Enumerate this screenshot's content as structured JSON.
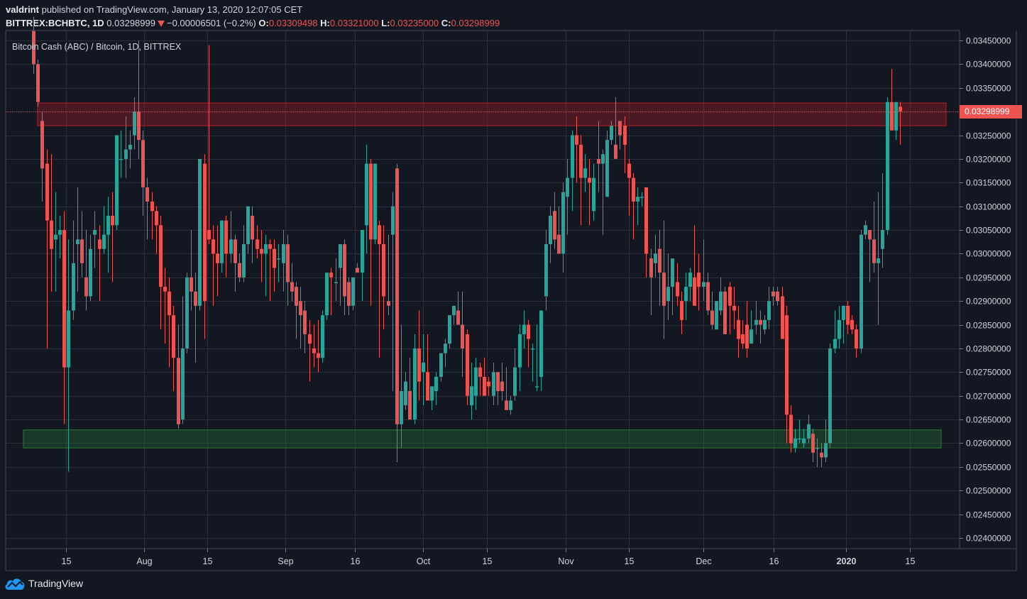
{
  "header": {
    "author": "valdrint",
    "published_text": "published on TradingView.com, January 13, 2020 12:07:05 CET",
    "symbol": "BITTREX:BCHBTC, 1D",
    "last_price": "0.03298999",
    "change": "−0.00006501 (−0.2%)",
    "ohlc": [
      {
        "key": "O:",
        "value": "0.03309498"
      },
      {
        "key": "H:",
        "value": "0.03321000"
      },
      {
        "key": "L:",
        "value": "0.03235000"
      },
      {
        "key": "C:",
        "value": "0.03298999"
      }
    ]
  },
  "legend": "Bitcoin Cash (ABC) / Bitcoin, 1D, BITTREX",
  "price_label": "0.03298999",
  "brand": "TradingView",
  "colors": {
    "background": "#131722",
    "grid": "#2a2e39",
    "up": "#26a69a",
    "down": "#ef5350",
    "resistance_zone": "#7f1d24",
    "support_zone": "#1b5e20",
    "axis_text": "#d1d4dc",
    "brand_blue": "#2196f3"
  },
  "chart_data": {
    "type": "candlestick",
    "title": "Bitcoin Cash (ABC) / Bitcoin, 1D, BITTREX",
    "xlabel": "",
    "ylabel": "",
    "ylim": [
      0.0238,
      0.0346
    ],
    "y_ticks": [
      "0.03450000",
      "0.03400000",
      "0.03350000",
      "0.03300000",
      "0.03250000",
      "0.03200000",
      "0.03150000",
      "0.03100000",
      "0.03050000",
      "0.03000000",
      "0.02950000",
      "0.02900000",
      "0.02850000",
      "0.02800000",
      "0.02750000",
      "0.02700000",
      "0.02650000",
      "0.02600000",
      "0.02550000",
      "0.02500000",
      "0.02450000",
      "0.02400000"
    ],
    "x_ticks": [
      {
        "label": "15",
        "x": 93
      },
      {
        "label": "Aug",
        "x": 203
      },
      {
        "label": "15",
        "x": 292
      },
      {
        "label": "Sep",
        "x": 402
      },
      {
        "label": "16",
        "x": 500
      },
      {
        "label": "Oct",
        "x": 596
      },
      {
        "label": "15",
        "x": 686
      },
      {
        "label": "Nov",
        "x": 797
      },
      {
        "label": "15",
        "x": 886
      },
      {
        "label": "Dec",
        "x": 991
      },
      {
        "label": "16",
        "x": 1090
      },
      {
        "label": "2020",
        "x": 1192
      },
      {
        "label": "15",
        "x": 1282
      }
    ],
    "grid": true,
    "zones": [
      {
        "name": "resistance",
        "from": 0.0327,
        "to": 0.03318,
        "x_start": 53,
        "x_end": 1333
      },
      {
        "name": "support",
        "from": 0.0259,
        "to": 0.02628,
        "x_start": 33,
        "x_end": 1326
      }
    ],
    "last_close_line": 0.03298999,
    "candles": [
      [
        0.0347,
        0.035,
        0.0338,
        0.034
      ],
      [
        0.034,
        0.0341,
        0.0331,
        0.0332
      ],
      [
        0.0328,
        0.033,
        0.0311,
        0.0318
      ],
      [
        0.0319,
        0.0322,
        0.028,
        0.0307
      ],
      [
        0.0307,
        0.0321,
        0.0292,
        0.0301
      ],
      [
        0.0303,
        0.0313,
        0.0292,
        0.0304
      ],
      [
        0.0304,
        0.0308,
        0.0299,
        0.0305
      ],
      [
        0.0305,
        0.0309,
        0.0264,
        0.0276
      ],
      [
        0.0276,
        0.0303,
        0.0254,
        0.0288
      ],
      [
        0.0288,
        0.0307,
        0.0286,
        0.0298
      ],
      [
        0.0302,
        0.0314,
        0.0292,
        0.0303
      ],
      [
        0.0303,
        0.0309,
        0.0295,
        0.0298
      ],
      [
        0.0295,
        0.0305,
        0.0288,
        0.0291
      ],
      [
        0.0291,
        0.0304,
        0.029,
        0.0301
      ],
      [
        0.0304,
        0.0309,
        0.0297,
        0.0305
      ],
      [
        0.0303,
        0.0306,
        0.029,
        0.0301
      ],
      [
        0.0301,
        0.031,
        0.03,
        0.0304
      ],
      [
        0.0304,
        0.0312,
        0.0296,
        0.0308
      ],
      [
        0.0308,
        0.0313,
        0.0294,
        0.0306
      ],
      [
        0.0306,
        0.0324,
        0.0305,
        0.0325
      ],
      [
        0.032,
        0.0326,
        0.0316,
        0.032
      ],
      [
        0.032,
        0.0329,
        0.0316,
        0.0322
      ],
      [
        0.0322,
        0.0326,
        0.0318,
        0.0323
      ],
      [
        0.0325,
        0.0333,
        0.0322,
        0.033
      ],
      [
        0.033,
        0.0345,
        0.032,
        0.0324
      ],
      [
        0.0324,
        0.0326,
        0.0308,
        0.0314
      ],
      [
        0.0314,
        0.0316,
        0.0303,
        0.0311
      ],
      [
        0.0311,
        0.0313,
        0.0303,
        0.0309
      ],
      [
        0.0309,
        0.031,
        0.03,
        0.0306
      ],
      [
        0.0306,
        0.0308,
        0.0284,
        0.0293
      ],
      [
        0.0293,
        0.0297,
        0.0281,
        0.0292
      ],
      [
        0.0292,
        0.0295,
        0.0276,
        0.0287
      ],
      [
        0.0287,
        0.0289,
        0.0271,
        0.0278
      ],
      [
        0.0278,
        0.0285,
        0.0263,
        0.0264
      ],
      [
        0.0265,
        0.0291,
        0.0264,
        0.028
      ],
      [
        0.028,
        0.0296,
        0.0279,
        0.0295
      ],
      [
        0.0295,
        0.0305,
        0.0288,
        0.0292
      ],
      [
        0.0292,
        0.0296,
        0.0277,
        0.0289
      ],
      [
        0.0289,
        0.0302,
        0.0288,
        0.032
      ],
      [
        0.0319,
        0.0321,
        0.0282,
        0.029
      ],
      [
        0.0305,
        0.0344,
        0.0302,
        0.0303
      ],
      [
        0.0303,
        0.0306,
        0.0289,
        0.03
      ],
      [
        0.03,
        0.0306,
        0.0291,
        0.0298
      ],
      [
        0.0298,
        0.0307,
        0.0296,
        0.0307
      ],
      [
        0.0307,
        0.0308,
        0.0295,
        0.03
      ],
      [
        0.03,
        0.0309,
        0.0298,
        0.0303
      ],
      [
        0.0303,
        0.0304,
        0.0292,
        0.0298
      ],
      [
        0.0298,
        0.03,
        0.0294,
        0.0295
      ],
      [
        0.0295,
        0.0306,
        0.0294,
        0.0302
      ],
      [
        0.0302,
        0.0309,
        0.03,
        0.031
      ],
      [
        0.0308,
        0.031,
        0.0298,
        0.0303
      ],
      [
        0.0303,
        0.0306,
        0.0299,
        0.0301
      ],
      [
        0.0301,
        0.0305,
        0.0294,
        0.03
      ],
      [
        0.03,
        0.0304,
        0.0291,
        0.0302
      ],
      [
        0.0302,
        0.0303,
        0.029,
        0.0301
      ],
      [
        0.0301,
        0.0303,
        0.0292,
        0.0297
      ],
      [
        0.0299,
        0.0302,
        0.0294,
        0.0299
      ],
      [
        0.0298,
        0.0305,
        0.0292,
        0.0302
      ],
      [
        0.0302,
        0.0304,
        0.0289,
        0.0294
      ],
      [
        0.0294,
        0.0298,
        0.029,
        0.0292
      ],
      [
        0.0293,
        0.0294,
        0.0282,
        0.0289
      ],
      [
        0.029,
        0.0293,
        0.028,
        0.0287
      ],
      [
        0.0288,
        0.029,
        0.0279,
        0.0283
      ],
      [
        0.0283,
        0.0286,
        0.0273,
        0.0281
      ],
      [
        0.028,
        0.0285,
        0.0276,
        0.0279
      ],
      [
        0.0279,
        0.0286,
        0.0275,
        0.0278
      ],
      [
        0.0278,
        0.0288,
        0.0277,
        0.0287
      ],
      [
        0.0287,
        0.0295,
        0.0286,
        0.0296
      ],
      [
        0.0296,
        0.0297,
        0.0287,
        0.0295
      ],
      [
        0.0294,
        0.0299,
        0.029,
        0.0294
      ],
      [
        0.0297,
        0.0302,
        0.0289,
        0.0302
      ],
      [
        0.0302,
        0.0303,
        0.0287,
        0.0291
      ],
      [
        0.0294,
        0.0295,
        0.0287,
        0.0289
      ],
      [
        0.0289,
        0.0295,
        0.0288,
        0.0295
      ],
      [
        0.0297,
        0.0298,
        0.0296,
        0.0296
      ],
      [
        0.0296,
        0.0303,
        0.029,
        0.0305
      ],
      [
        0.0306,
        0.0323,
        0.03,
        0.0319
      ],
      [
        0.0319,
        0.032,
        0.0289,
        0.0303
      ],
      [
        0.0303,
        0.0319,
        0.0302,
        0.0319
      ],
      [
        0.0306,
        0.0307,
        0.0278,
        0.0302
      ],
      [
        0.0302,
        0.0306,
        0.0284,
        0.0291
      ],
      [
        0.029,
        0.0304,
        0.0287,
        0.0289
      ],
      [
        0.0304,
        0.0313,
        0.0271,
        0.031
      ],
      [
        0.0318,
        0.0319,
        0.0256,
        0.0264
      ],
      [
        0.0264,
        0.0285,
        0.0259,
        0.0271
      ],
      [
        0.0268,
        0.0275,
        0.0267,
        0.0273
      ],
      [
        0.0271,
        0.0278,
        0.0269,
        0.0265
      ],
      [
        0.0265,
        0.0283,
        0.0264,
        0.028
      ],
      [
        0.028,
        0.0288,
        0.0269,
        0.0273
      ],
      [
        0.0275,
        0.0283,
        0.0268,
        0.0277
      ],
      [
        0.0275,
        0.0283,
        0.027,
        0.0269
      ],
      [
        0.0269,
        0.0272,
        0.0267,
        0.0272
      ],
      [
        0.0271,
        0.0275,
        0.0268,
        0.0274
      ],
      [
        0.0274,
        0.0278,
        0.0273,
        0.0279
      ],
      [
        0.0279,
        0.0282,
        0.0276,
        0.0281
      ],
      [
        0.0281,
        0.0287,
        0.028,
        0.0287
      ],
      [
        0.0287,
        0.0289,
        0.0285,
        0.0289
      ],
      [
        0.0288,
        0.0292,
        0.0285,
        0.0285
      ],
      [
        0.0285,
        0.0292,
        0.0274,
        0.028
      ],
      [
        0.0283,
        0.0284,
        0.0268,
        0.027
      ],
      [
        0.0268,
        0.0277,
        0.0265,
        0.0272
      ],
      [
        0.027,
        0.0278,
        0.0267,
        0.0276
      ],
      [
        0.0276,
        0.0277,
        0.027,
        0.0274
      ],
      [
        0.0274,
        0.0278,
        0.0272,
        0.027
      ],
      [
        0.0273,
        0.0274,
        0.027,
        0.0272
      ],
      [
        0.027,
        0.0277,
        0.0268,
        0.0275
      ],
      [
        0.0275,
        0.0275,
        0.0268,
        0.0271
      ],
      [
        0.0273,
        0.0277,
        0.0269,
        0.0271
      ],
      [
        0.0269,
        0.0276,
        0.0267,
        0.0267
      ],
      [
        0.0267,
        0.027,
        0.0266,
        0.0269
      ],
      [
        0.027,
        0.028,
        0.0269,
        0.0276
      ],
      [
        0.0276,
        0.0285,
        0.0271,
        0.0283
      ],
      [
        0.0283,
        0.0288,
        0.028,
        0.0285
      ],
      [
        0.0285,
        0.0286,
        0.0276,
        0.0282
      ],
      [
        0.028,
        0.0281,
        0.0273,
        0.028
      ],
      [
        0.0272,
        0.0285,
        0.0271,
        0.0272
      ],
      [
        0.0274,
        0.0286,
        0.0271,
        0.0288
      ],
      [
        0.0291,
        0.0305,
        0.0288,
        0.0302
      ],
      [
        0.0302,
        0.031,
        0.0298,
        0.0308
      ],
      [
        0.0309,
        0.0313,
        0.0301,
        0.0303
      ],
      [
        0.0304,
        0.031,
        0.0303,
        0.03
      ],
      [
        0.03,
        0.0315,
        0.0296,
        0.0313
      ],
      [
        0.0312,
        0.032,
        0.0304,
        0.0316
      ],
      [
        0.0316,
        0.0326,
        0.0309,
        0.0325
      ],
      [
        0.0325,
        0.0329,
        0.0315,
        0.0323
      ],
      [
        0.0323,
        0.0325,
        0.0306,
        0.0316
      ],
      [
        0.0316,
        0.0321,
        0.0313,
        0.0318
      ],
      [
        0.0316,
        0.032,
        0.0306,
        0.0315
      ],
      [
        0.0309,
        0.0319,
        0.0307,
        0.0316
      ],
      [
        0.032,
        0.0328,
        0.0313,
        0.0319
      ],
      [
        0.0319,
        0.0322,
        0.0304,
        0.0321
      ],
      [
        0.0312,
        0.0326,
        0.0312,
        0.0324
      ],
      [
        0.0324,
        0.0328,
        0.0323,
        0.0327
      ],
      [
        0.0323,
        0.0333,
        0.0321,
        0.032
      ],
      [
        0.0328,
        0.0328,
        0.0322,
        0.0325
      ],
      [
        0.0327,
        0.0329,
        0.0317,
        0.0323
      ],
      [
        0.0319,
        0.032,
        0.0308,
        0.0316
      ],
      [
        0.0316,
        0.0317,
        0.0303,
        0.0311
      ],
      [
        0.0311,
        0.0314,
        0.0306,
        0.0312
      ],
      [
        0.0312,
        0.0313,
        0.031,
        0.0312
      ],
      [
        0.0314,
        0.0314,
        0.0295,
        0.03
      ],
      [
        0.0299,
        0.0301,
        0.0287,
        0.0295
      ],
      [
        0.0298,
        0.0304,
        0.0295,
        0.03
      ],
      [
        0.0301,
        0.0305,
        0.0289,
        0.0296
      ],
      [
        0.0296,
        0.0307,
        0.0282,
        0.0289
      ],
      [
        0.029,
        0.03,
        0.0286,
        0.0293
      ],
      [
        0.0293,
        0.0296,
        0.0287,
        0.0299
      ],
      [
        0.0294,
        0.0298,
        0.0289,
        0.0291
      ],
      [
        0.029,
        0.0292,
        0.0283,
        0.0286
      ],
      [
        0.029,
        0.0296,
        0.0286,
        0.0293
      ],
      [
        0.0293,
        0.0297,
        0.029,
        0.0296
      ],
      [
        0.0295,
        0.0306,
        0.0292,
        0.0289
      ],
      [
        0.0296,
        0.03,
        0.0288,
        0.0293
      ],
      [
        0.0293,
        0.0303,
        0.029,
        0.0294
      ],
      [
        0.0294,
        0.0296,
        0.0287,
        0.0288
      ],
      [
        0.0288,
        0.0292,
        0.0284,
        0.0285
      ],
      [
        0.0284,
        0.029,
        0.0284,
        0.029
      ],
      [
        0.0288,
        0.0295,
        0.0287,
        0.0292
      ],
      [
        0.0292,
        0.0293,
        0.0285,
        0.0283
      ],
      [
        0.0293,
        0.0294,
        0.0283,
        0.0289
      ],
      [
        0.0289,
        0.0293,
        0.0284,
        0.0288
      ],
      [
        0.0286,
        0.0289,
        0.0278,
        0.0282
      ],
      [
        0.0283,
        0.0286,
        0.028,
        0.0281
      ],
      [
        0.0285,
        0.029,
        0.0278,
        0.028
      ],
      [
        0.0281,
        0.0288,
        0.0282,
        0.0284
      ],
      [
        0.0285,
        0.029,
        0.0283,
        0.0286
      ],
      [
        0.0286,
        0.0288,
        0.0281,
        0.0285
      ],
      [
        0.0284,
        0.0287,
        0.0283,
        0.0286
      ],
      [
        0.0286,
        0.0293,
        0.0284,
        0.029
      ],
      [
        0.0292,
        0.0293,
        0.0289,
        0.0291
      ],
      [
        0.0292,
        0.0293,
        0.0289,
        0.029
      ],
      [
        0.0291,
        0.0293,
        0.0286,
        0.0282
      ],
      [
        0.0287,
        0.0289,
        0.026,
        0.0266
      ],
      [
        0.0266,
        0.0268,
        0.0258,
        0.026
      ],
      [
        0.0259,
        0.0263,
        0.0258,
        0.0261
      ],
      [
        0.0261,
        0.0265,
        0.026,
        0.0261
      ],
      [
        0.026,
        0.0263,
        0.0259,
        0.0261
      ],
      [
        0.0261,
        0.0266,
        0.026,
        0.0264
      ],
      [
        0.0262,
        0.0263,
        0.0256,
        0.0258
      ],
      [
        0.0259,
        0.0261,
        0.0255,
        0.0259
      ],
      [
        0.0258,
        0.026,
        0.0255,
        0.0257
      ],
      [
        0.0257,
        0.0265,
        0.0256,
        0.026
      ],
      [
        0.026,
        0.0281,
        0.0259,
        0.028
      ],
      [
        0.028,
        0.0288,
        0.0279,
        0.0282
      ],
      [
        0.0282,
        0.0289,
        0.028,
        0.0286
      ],
      [
        0.0286,
        0.0289,
        0.0281,
        0.0289
      ],
      [
        0.0289,
        0.029,
        0.0283,
        0.0285
      ],
      [
        0.0286,
        0.0287,
        0.0283,
        0.0284
      ],
      [
        0.0284,
        0.0285,
        0.0278,
        0.028
      ],
      [
        0.028,
        0.0305,
        0.0279,
        0.0304
      ],
      [
        0.0304,
        0.0307,
        0.0303,
        0.0306
      ],
      [
        0.0305,
        0.0305,
        0.0294,
        0.0303
      ],
      [
        0.0303,
        0.0311,
        0.0296,
        0.0298
      ],
      [
        0.0298,
        0.0313,
        0.0285,
        0.0299
      ],
      [
        0.0301,
        0.0317,
        0.0297,
        0.0305
      ],
      [
        0.0305,
        0.0333,
        0.0304,
        0.0332
      ],
      [
        0.0332,
        0.0339,
        0.0328,
        0.0326
      ],
      [
        0.0326,
        0.0331,
        0.0324,
        0.0332
      ],
      [
        0.0331,
        0.0332,
        0.0323,
        0.033
      ]
    ]
  }
}
